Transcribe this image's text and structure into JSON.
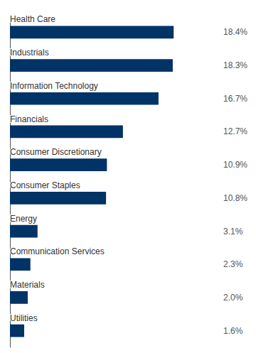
{
  "chart_data": {
    "type": "bar",
    "orientation": "horizontal",
    "categories": [
      "Health Care",
      "Industrials",
      "Information Technology",
      "Financials",
      "Consumer Discretionary",
      "Consumer Staples",
      "Energy",
      "Communication Services",
      "Materials",
      "Utilities"
    ],
    "values": [
      18.4,
      18.3,
      16.7,
      12.7,
      10.9,
      10.8,
      3.1,
      2.3,
      2.0,
      1.6
    ],
    "value_labels": [
      "18.4%",
      "18.3%",
      "16.7%",
      "12.7%",
      "10.9%",
      "10.8%",
      "3.1%",
      "2.3%",
      "2.0%",
      "1.6%"
    ],
    "data_labels": true,
    "color": "#003366",
    "xlim": [
      0,
      23.5
    ],
    "grid": false,
    "tick_labels": false
  }
}
